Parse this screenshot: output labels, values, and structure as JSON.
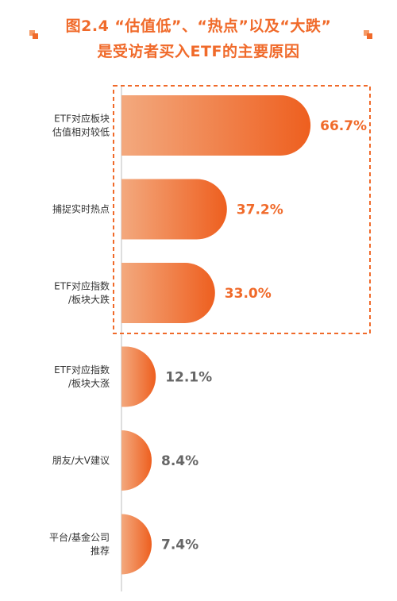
{
  "title": {
    "line1": "图2.4 “估值低”、“热点”以及“大跌”",
    "line2": "是受访者买入ETF的主要原因"
  },
  "colors": {
    "accent": "#f06a2a",
    "bar_start": "#f3a97e",
    "bar_end": "#ee5f1f",
    "value_highlight": "#f06a2a",
    "value_normal": "#666666",
    "highlight_box": "#f06a2a"
  },
  "chart_data": {
    "type": "bar",
    "orientation": "horizontal",
    "categories": [
      [
        "ETF对应板块",
        "估值相对较低"
      ],
      [
        "捕捉实时热点"
      ],
      [
        "ETF对应指数",
        "/板块大跌"
      ],
      [
        "ETF对应指数",
        "/板块大涨"
      ],
      [
        "朋友/大V建议"
      ],
      [
        "平台/基金公司",
        "推荐"
      ]
    ],
    "values": [
      66.7,
      37.2,
      33.0,
      12.1,
      8.4,
      7.4
    ],
    "value_labels": [
      "66.7%",
      "37.2%",
      "33.0%",
      "12.1%",
      "8.4%",
      "7.4%"
    ],
    "highlighted": [
      true,
      true,
      true,
      false,
      false,
      false
    ],
    "xlim": [
      0,
      100
    ]
  }
}
